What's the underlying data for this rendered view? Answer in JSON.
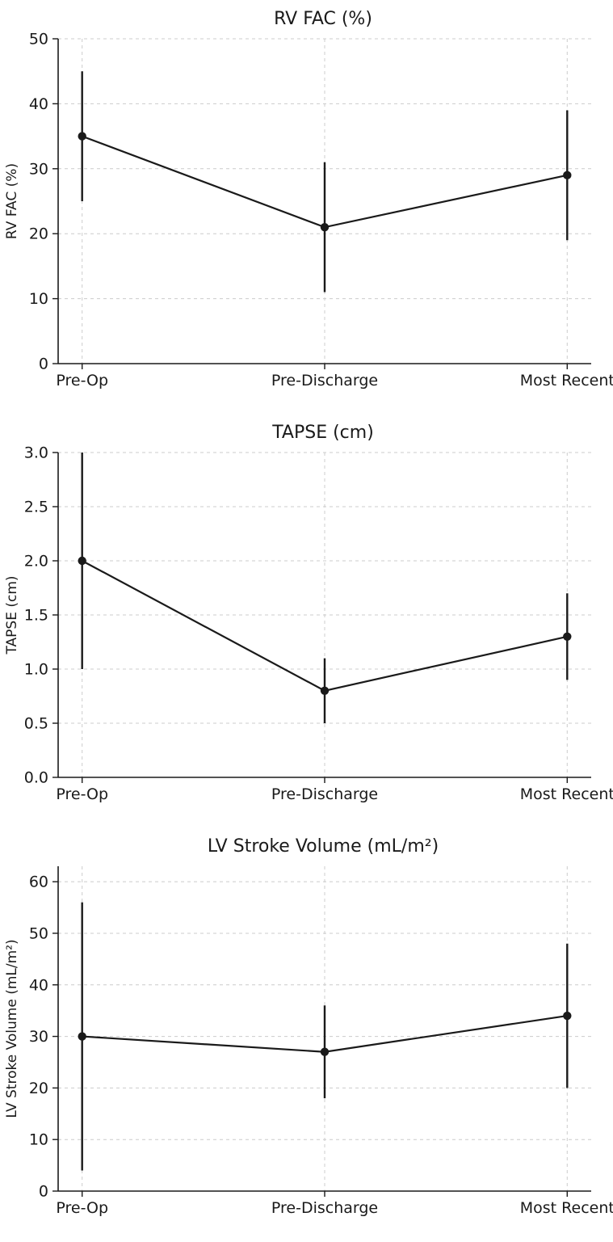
{
  "style": {
    "line_color": "#1a1a1a",
    "grid_color": "#cccccc",
    "background": "#ffffff"
  },
  "chart_data": [
    {
      "type": "line",
      "id": "rv-fac",
      "title": "RV FAC (%)",
      "ylabel": "RV FAC (%)",
      "xlabel": "",
      "categories": [
        "Pre-Op",
        "Pre-Discharge",
        "Most Recent"
      ],
      "values": [
        35,
        21,
        29
      ],
      "error": [
        10,
        10,
        10
      ],
      "error_low": [
        25,
        11,
        19
      ],
      "error_high": [
        45,
        31,
        39
      ],
      "ylim": [
        0,
        50
      ],
      "yticks": [
        0,
        10,
        20,
        30,
        40,
        50
      ],
      "ytick_labels": [
        "0",
        "10",
        "20",
        "30",
        "40",
        "50"
      ],
      "grid": true,
      "legend": "none",
      "marker": "circle"
    },
    {
      "type": "line",
      "id": "tapse",
      "title": "TAPSE (cm)",
      "ylabel": "TAPSE (cm)",
      "xlabel": "",
      "categories": [
        "Pre-Op",
        "Pre-Discharge",
        "Most Recent"
      ],
      "values": [
        2.0,
        0.8,
        1.3
      ],
      "error": [
        1.0,
        0.3,
        0.4
      ],
      "error_low": [
        1.0,
        0.5,
        0.9
      ],
      "error_high": [
        3.0,
        1.1,
        1.7
      ],
      "ylim": [
        0,
        3.0
      ],
      "yticks": [
        0,
        0.5,
        1.0,
        1.5,
        2.0,
        2.5,
        3.0
      ],
      "ytick_labels": [
        "0.0",
        "0.5",
        "1.0",
        "1.5",
        "2.0",
        "2.5",
        "3.0"
      ],
      "grid": true,
      "legend": "none",
      "marker": "circle"
    },
    {
      "type": "line",
      "id": "lv-stroke-volume",
      "title": "LV Stroke Volume (mL/m²)",
      "ylabel": "LV Stroke Volume (mL/m²)",
      "xlabel": "",
      "categories": [
        "Pre-Op",
        "Pre-Discharge",
        "Most Recent"
      ],
      "values": [
        30,
        27,
        34
      ],
      "error": [
        26,
        9,
        14
      ],
      "error_low": [
        4,
        18,
        20
      ],
      "error_high": [
        56,
        36,
        48
      ],
      "ylim": [
        0,
        63
      ],
      "yticks": [
        0,
        10,
        20,
        30,
        40,
        50,
        60
      ],
      "ytick_labels": [
        "0",
        "10",
        "20",
        "30",
        "40",
        "50",
        "60"
      ],
      "grid": true,
      "legend": "none",
      "marker": "circle"
    }
  ]
}
